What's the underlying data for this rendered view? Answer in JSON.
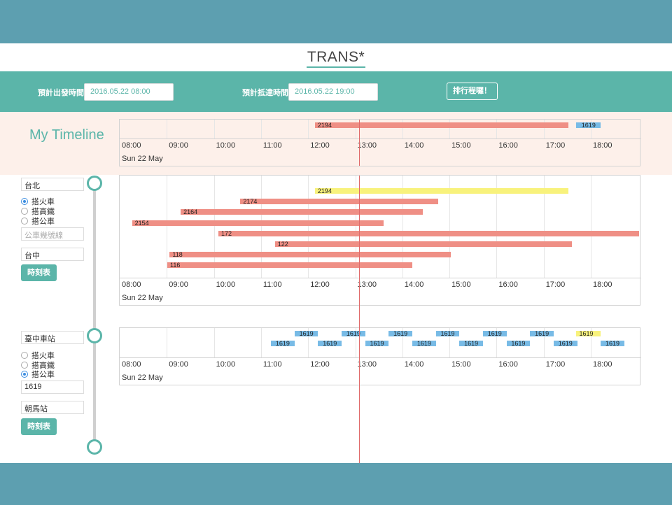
{
  "app": {
    "title": "TRANS*"
  },
  "search": {
    "depart_label": "預計出發時間",
    "depart_value": "2016.05.22 08:00",
    "arrive_label": "預計抵達時間",
    "arrive_value": "2016.05.22 19:00",
    "schedule_button": "排行程囉！"
  },
  "my_timeline": {
    "title": "My Timeline",
    "ticks": [
      "08:00",
      "09:00",
      "10:00",
      "11:00",
      "12:00",
      "13:00",
      "14:00",
      "15:00",
      "16:00",
      "17:00",
      "18:00"
    ],
    "date": "Sun 22 May",
    "items": [
      {
        "label": "2194",
        "start": "12:06",
        "end": "17:29",
        "color": "red"
      },
      {
        "label": "1619",
        "start": "17:39",
        "end": "18:10",
        "color": "blue"
      }
    ]
  },
  "segment1": {
    "from": "台北",
    "options": [
      "搭火車",
      "搭高鐵",
      "搭公車"
    ],
    "selected": "搭火車",
    "bus_placeholder": "公車幾號線",
    "to": "台中",
    "timetable_button": "時刻表",
    "ticks": [
      "08:00",
      "09:00",
      "10:00",
      "11:00",
      "12:00",
      "13:00",
      "14:00",
      "15:00",
      "16:00",
      "17:00",
      "18:00"
    ],
    "date": "Sun 22 May",
    "trains": [
      {
        "label": "2194",
        "start": "12:06",
        "end": "17:29",
        "color": "yellow"
      },
      {
        "label": "2174",
        "start": "10:31",
        "end": "14:43",
        "color": "red"
      },
      {
        "label": "2164",
        "start": "09:15",
        "end": "14:23",
        "color": "red"
      },
      {
        "label": "2154",
        "start": "08:13",
        "end": "13:33",
        "color": "red"
      },
      {
        "label": "172",
        "start": "10:03",
        "end": "18:59",
        "color": "red"
      },
      {
        "label": "122",
        "start": "11:15",
        "end": "17:33",
        "color": "red"
      },
      {
        "label": "118",
        "start": "09:01",
        "end": "14:59",
        "color": "red"
      },
      {
        "label": "116",
        "start": "08:58",
        "end": "14:10",
        "color": "red"
      }
    ]
  },
  "segment2": {
    "from": "臺中車站",
    "options": [
      "搭火車",
      "搭高鐵",
      "搭公車"
    ],
    "selected": "搭公車",
    "bus_value": "1619",
    "to": "朝馬站",
    "timetable_button": "時刻表",
    "ticks": [
      "08:00",
      "09:00",
      "10:00",
      "11:00",
      "12:00",
      "13:00",
      "14:00",
      "15:00",
      "16:00",
      "17:00",
      "18:00"
    ],
    "date": "Sun 22 May",
    "buses_top": [
      {
        "label": "1619",
        "start": "11:40",
        "end": "12:10",
        "color": "blue"
      },
      {
        "label": "1619",
        "start": "12:40",
        "end": "13:10",
        "color": "blue"
      },
      {
        "label": "1619",
        "start": "13:40",
        "end": "14:10",
        "color": "blue"
      },
      {
        "label": "1619",
        "start": "14:40",
        "end": "15:10",
        "color": "blue"
      },
      {
        "label": "1619",
        "start": "15:40",
        "end": "16:10",
        "color": "blue"
      },
      {
        "label": "1619",
        "start": "16:40",
        "end": "17:10",
        "color": "blue"
      },
      {
        "label": "1619",
        "start": "17:39",
        "end": "18:10",
        "color": "yellow"
      }
    ],
    "buses_bottom": [
      {
        "label": "1619",
        "start": "11:10",
        "end": "11:40",
        "color": "blue"
      },
      {
        "label": "1619",
        "start": "12:10",
        "end": "12:40",
        "color": "blue"
      },
      {
        "label": "1619",
        "start": "13:10",
        "end": "13:40",
        "color": "blue"
      },
      {
        "label": "1619",
        "start": "14:10",
        "end": "14:40",
        "color": "blue"
      },
      {
        "label": "1619",
        "start": "15:10",
        "end": "15:40",
        "color": "blue"
      },
      {
        "label": "1619",
        "start": "16:10",
        "end": "16:40",
        "color": "blue"
      },
      {
        "label": "1619",
        "start": "17:10",
        "end": "17:40",
        "color": "blue"
      },
      {
        "label": "1619",
        "start": "18:10",
        "end": "18:40",
        "color": "blue"
      }
    ]
  },
  "current_time": "12:53",
  "colors": {
    "accent": "#5bb5a9",
    "bar_bar": "#5d9fb0",
    "red": "#ef8f85",
    "yellow": "#f8f27c",
    "blue": "#78bbe6",
    "now": "#e06a6a"
  }
}
